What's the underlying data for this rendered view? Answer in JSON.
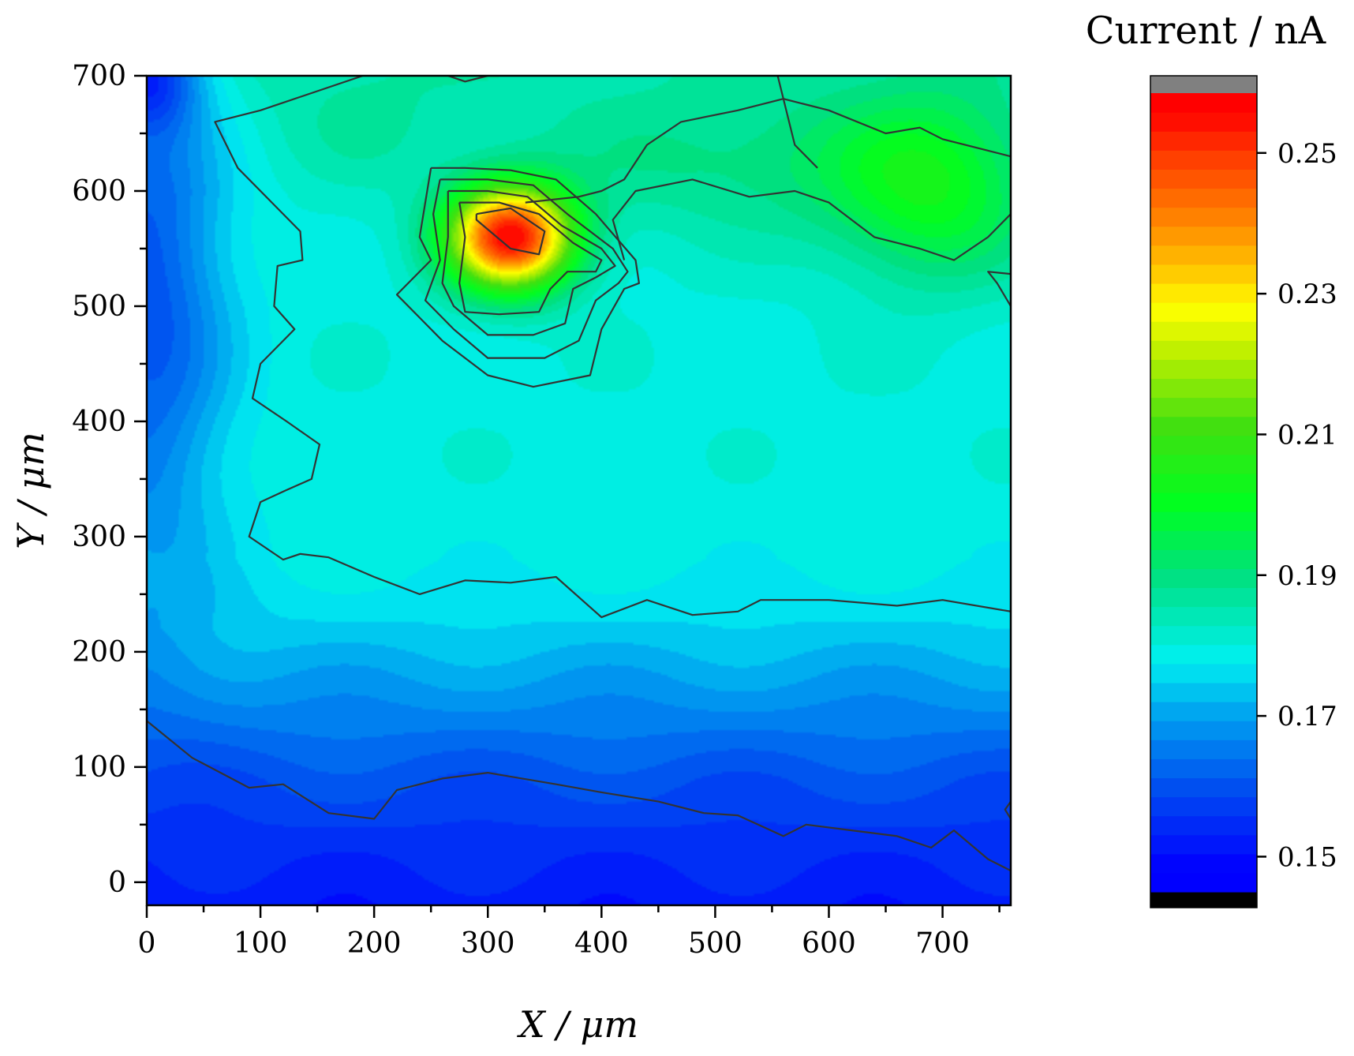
{
  "chart_data": {
    "type": "heatmap",
    "subtype": "filled-contour",
    "xlabel": "X / μm",
    "ylabel": "Y / μm",
    "xlim": [
      0,
      760
    ],
    "ylim": [
      -20,
      700
    ],
    "xticks": [
      0,
      100,
      200,
      300,
      400,
      500,
      600,
      700
    ],
    "yticks": [
      0,
      100,
      200,
      300,
      400,
      500,
      600,
      700
    ],
    "colorbar": {
      "title": "Current / nA",
      "range": [
        0.145,
        0.2585
      ],
      "ticks": [
        0.15,
        0.17,
        0.19,
        0.21,
        0.23,
        0.25
      ],
      "tick_labels": [
        "0.15",
        "0.17",
        "0.19",
        "0.21",
        "0.23",
        "0.25"
      ],
      "above_color": "#808080",
      "below_color": "#000000",
      "stops": [
        {
          "value": 0.1485,
          "color": "#0000ff"
        },
        {
          "value": 0.16,
          "color": "#0050f0"
        },
        {
          "value": 0.17,
          "color": "#00a0f0"
        },
        {
          "value": 0.178,
          "color": "#00f0f0"
        },
        {
          "value": 0.19,
          "color": "#00e080"
        },
        {
          "value": 0.2,
          "color": "#00ff20"
        },
        {
          "value": 0.211,
          "color": "#40e010"
        },
        {
          "value": 0.222,
          "color": "#c0f000"
        },
        {
          "value": 0.228,
          "color": "#ffff00"
        },
        {
          "value": 0.234,
          "color": "#ffc000"
        },
        {
          "value": 0.241,
          "color": "#ff8000"
        },
        {
          "value": 0.249,
          "color": "#ff4000"
        },
        {
          "value": 0.256,
          "color": "#ff0000"
        }
      ]
    },
    "field": {
      "background": [
        {
          "y": -20,
          "value": 0.152
        },
        {
          "y": 30,
          "value": 0.155
        },
        {
          "y": 90,
          "value": 0.16
        },
        {
          "y": 150,
          "value": 0.167
        },
        {
          "y": 220,
          "value": 0.175
        },
        {
          "y": 280,
          "value": 0.179
        },
        {
          "y": 400,
          "value": 0.18
        },
        {
          "y": 500,
          "value": 0.18
        },
        {
          "y": 600,
          "value": 0.181
        },
        {
          "y": 700,
          "value": 0.185
        }
      ],
      "features": [
        {
          "kind": "peak",
          "x": 320,
          "y": 560,
          "sx": 55,
          "sy": 45,
          "amp": 0.075
        },
        {
          "kind": "ridge",
          "x": 520,
          "y": 620,
          "sx": 160,
          "sy": 60,
          "amp": 0.008
        },
        {
          "kind": "ridge",
          "x": 690,
          "y": 600,
          "sx": 90,
          "sy": 80,
          "amp": 0.02
        },
        {
          "kind": "ridge",
          "x": 200,
          "y": 650,
          "sx": 80,
          "sy": 60,
          "amp": 0.003
        },
        {
          "kind": "left-low",
          "x": 0,
          "y": 520,
          "sx": 70,
          "sy": 260,
          "amp": -0.02
        },
        {
          "kind": "corner-low",
          "x": 0,
          "y": 700,
          "sx": 45,
          "sy": 45,
          "amp": -0.02
        }
      ]
    },
    "contour_lines": [
      {
        "label": "outer-upper",
        "points": [
          [
            190,
            700
          ],
          [
            100,
            670
          ],
          [
            60,
            660
          ],
          [
            80,
            620
          ],
          [
            110,
            590
          ],
          [
            135,
            565
          ],
          [
            137,
            540
          ],
          [
            115,
            535
          ],
          [
            112,
            500
          ],
          [
            130,
            480
          ],
          [
            100,
            450
          ],
          [
            93,
            420
          ],
          [
            123,
            400
          ],
          [
            152,
            380
          ],
          [
            145,
            350
          ],
          [
            122,
            340
          ],
          [
            100,
            330
          ],
          [
            90,
            300
          ],
          [
            120,
            280
          ],
          [
            135,
            285
          ],
          [
            160,
            282
          ],
          [
            200,
            265
          ],
          [
            240,
            250
          ],
          [
            280,
            262
          ],
          [
            320,
            260
          ],
          [
            360,
            265
          ],
          [
            400,
            230
          ],
          [
            440,
            245
          ],
          [
            480,
            232
          ],
          [
            520,
            235
          ],
          [
            540,
            245
          ],
          [
            600,
            245
          ],
          [
            660,
            240
          ],
          [
            700,
            245
          ],
          [
            760,
            235
          ]
        ]
      },
      {
        "label": "outer-upper-top",
        "points": [
          [
            265,
            700
          ],
          [
            280,
            695
          ],
          [
            300,
            700
          ]
        ]
      },
      {
        "label": "green-plateau",
        "points": [
          [
            333,
            590
          ],
          [
            380,
            595
          ],
          [
            400,
            600
          ],
          [
            420,
            610
          ],
          [
            440,
            640
          ],
          [
            470,
            660
          ],
          [
            520,
            670
          ],
          [
            560,
            680
          ],
          [
            600,
            670
          ],
          [
            650,
            650
          ],
          [
            680,
            655
          ],
          [
            700,
            645
          ],
          [
            720,
            640
          ],
          [
            760,
            630
          ],
          [
            760,
            580
          ],
          [
            740,
            560
          ],
          [
            710,
            540
          ],
          [
            680,
            550
          ],
          [
            640,
            560
          ],
          [
            600,
            590
          ],
          [
            570,
            600
          ],
          [
            530,
            595
          ],
          [
            480,
            610
          ],
          [
            430,
            600
          ],
          [
            410,
            575
          ],
          [
            420,
            540
          ]
        ]
      },
      {
        "label": "top-right-notch",
        "points": [
          [
            555,
            700
          ],
          [
            570,
            640
          ],
          [
            590,
            620
          ]
        ]
      },
      {
        "label": "right-edge-notch",
        "points": [
          [
            760,
            500
          ],
          [
            748,
            520
          ],
          [
            740,
            530
          ],
          [
            760,
            528
          ]
        ]
      },
      {
        "label": "lower-band",
        "points": [
          [
            0,
            140
          ],
          [
            40,
            108
          ],
          [
            90,
            82
          ],
          [
            120,
            85
          ],
          [
            160,
            60
          ],
          [
            200,
            55
          ],
          [
            220,
            80
          ],
          [
            260,
            90
          ],
          [
            300,
            95
          ],
          [
            360,
            85
          ],
          [
            400,
            78
          ],
          [
            450,
            70
          ],
          [
            490,
            60
          ],
          [
            520,
            58
          ],
          [
            560,
            40
          ],
          [
            580,
            50
          ],
          [
            620,
            45
          ],
          [
            660,
            40
          ],
          [
            690,
            30
          ],
          [
            710,
            45
          ],
          [
            740,
            20
          ],
          [
            760,
            10
          ]
        ]
      },
      {
        "label": "right-edge-lower",
        "points": [
          [
            760,
            55
          ],
          [
            755,
            63
          ],
          [
            760,
            70
          ]
        ]
      },
      {
        "label": "peak-0",
        "points": [
          [
            250,
            620
          ],
          [
            280,
            620
          ],
          [
            320,
            618
          ],
          [
            360,
            610
          ],
          [
            395,
            580
          ],
          [
            430,
            540
          ],
          [
            433,
            520
          ],
          [
            420,
            515
          ],
          [
            400,
            480
          ],
          [
            395,
            460
          ],
          [
            390,
            440
          ],
          [
            340,
            430
          ],
          [
            300,
            440
          ],
          [
            260,
            470
          ],
          [
            230,
            500
          ],
          [
            220,
            510
          ],
          [
            250,
            540
          ],
          [
            240,
            560
          ],
          [
            250,
            620
          ]
        ]
      },
      {
        "label": "peak-1",
        "points": [
          [
            258,
            610
          ],
          [
            300,
            610
          ],
          [
            340,
            605
          ],
          [
            370,
            580
          ],
          [
            410,
            550
          ],
          [
            423,
            530
          ],
          [
            415,
            520
          ],
          [
            395,
            505
          ],
          [
            380,
            470
          ],
          [
            350,
            455
          ],
          [
            300,
            455
          ],
          [
            270,
            480
          ],
          [
            245,
            505
          ],
          [
            258,
            540
          ],
          [
            252,
            580
          ],
          [
            258,
            610
          ]
        ]
      },
      {
        "label": "peak-2",
        "points": [
          [
            265,
            600
          ],
          [
            300,
            600
          ],
          [
            335,
            595
          ],
          [
            365,
            570
          ],
          [
            400,
            550
          ],
          [
            412,
            535
          ],
          [
            395,
            525
          ],
          [
            375,
            515
          ],
          [
            368,
            485
          ],
          [
            340,
            475
          ],
          [
            300,
            475
          ],
          [
            270,
            500
          ],
          [
            260,
            520
          ],
          [
            265,
            560
          ],
          [
            265,
            600
          ]
        ]
      },
      {
        "label": "peak-3",
        "points": [
          [
            275,
            590
          ],
          [
            310,
            590
          ],
          [
            345,
            580
          ],
          [
            375,
            555
          ],
          [
            400,
            540
          ],
          [
            395,
            530
          ],
          [
            370,
            530
          ],
          [
            355,
            515
          ],
          [
            345,
            495
          ],
          [
            310,
            493
          ],
          [
            280,
            495
          ],
          [
            275,
            520
          ],
          [
            280,
            560
          ],
          [
            275,
            590
          ]
        ]
      },
      {
        "label": "peak-core",
        "points": [
          [
            290,
            580
          ],
          [
            320,
            585
          ],
          [
            350,
            565
          ],
          [
            345,
            545
          ],
          [
            320,
            550
          ],
          [
            290,
            575
          ],
          [
            290,
            580
          ]
        ]
      }
    ]
  }
}
